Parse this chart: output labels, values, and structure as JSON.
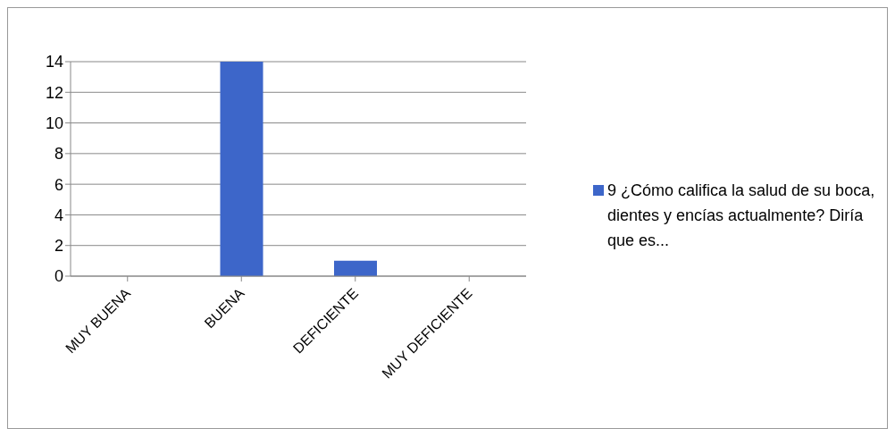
{
  "chart_data": {
    "type": "bar",
    "categories": [
      "MUY BUENA",
      "BUENA",
      "DEFICIENTE",
      "MUY DEFICIENTE"
    ],
    "series": [
      {
        "name": "9 ¿Cómo califica la salud de su boca, dientes y encías actualmente? Diría que es...",
        "color": "#3d66c9",
        "values": [
          0,
          14,
          1,
          0
        ]
      }
    ],
    "ylim": [
      0,
      14
    ],
    "yticks": [
      0,
      2,
      4,
      6,
      8,
      10,
      12,
      14
    ],
    "grid": "y",
    "legend": "right"
  }
}
